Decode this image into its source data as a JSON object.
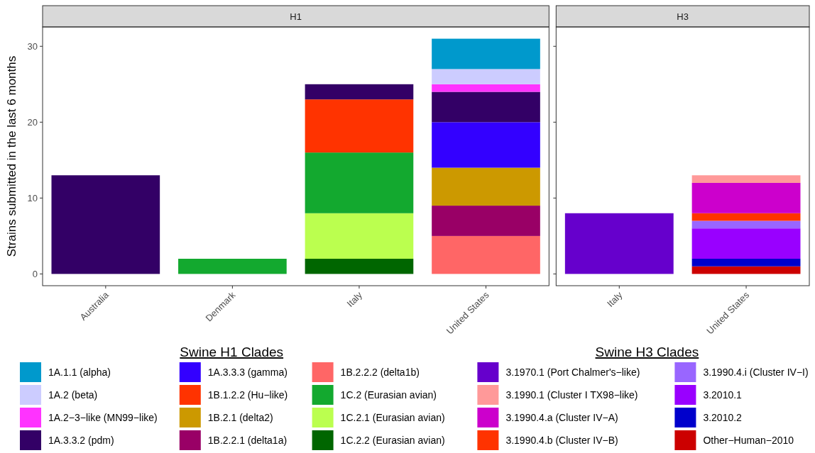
{
  "chart_data": [
    {
      "type": "bar",
      "stacked": true,
      "title": "H1",
      "ylabel": "Strains submitted in the last 6 months",
      "legend": "bottom",
      "legend_title": "Swine H1 Clades",
      "grid": false,
      "ylim": [
        -1.55,
        32.55
      ],
      "yticks": [
        0,
        10,
        20,
        30
      ],
      "categories": [
        "Australia",
        "Denmark",
        "Italy",
        "United States"
      ],
      "series": [
        {
          "name": "1C.2.2 (Eurasian avian)",
          "color": "#006600",
          "values": [
            null,
            null,
            2,
            null
          ]
        },
        {
          "name": "1C.2.1 (Eurasian avian)",
          "color": "#bbff4f",
          "values": [
            null,
            null,
            6,
            null
          ]
        },
        {
          "name": "1C.2 (Eurasian avian)",
          "color": "#13a92f",
          "values": [
            null,
            2,
            8,
            null
          ]
        },
        {
          "name": "1B.2.2.2 (delta1b)",
          "color": "#ff6666",
          "values": [
            null,
            null,
            null,
            5
          ]
        },
        {
          "name": "1B.2.2.1 (delta1a)",
          "color": "#990066",
          "values": [
            null,
            null,
            null,
            4
          ]
        },
        {
          "name": "1B.2.1 (delta2)",
          "color": "#cc9900",
          "values": [
            null,
            null,
            null,
            5
          ]
        },
        {
          "name": "1B.1.2.2 (Hu−like)",
          "color": "#ff3300",
          "values": [
            null,
            null,
            7,
            null
          ]
        },
        {
          "name": "1A.3.3.3 (gamma)",
          "color": "#3300ff",
          "values": [
            null,
            null,
            null,
            6
          ]
        },
        {
          "name": "1A.3.3.2 (pdm)",
          "color": "#330066",
          "values": [
            13,
            null,
            2,
            4
          ]
        },
        {
          "name": "1A.2−3−like (MN99−like)",
          "color": "#ff33ff",
          "values": [
            null,
            null,
            null,
            1
          ]
        },
        {
          "name": "1A.2 (beta)",
          "color": "#ccccff",
          "values": [
            null,
            null,
            null,
            2
          ]
        },
        {
          "name": "1A.1.1 (alpha)",
          "color": "#0099cc",
          "values": [
            null,
            null,
            null,
            4
          ]
        }
      ]
    },
    {
      "type": "bar",
      "stacked": true,
      "title": "H3",
      "legend": "bottom",
      "legend_title": "Swine H3 Clades",
      "grid": false,
      "tick_labels": "x",
      "ylim": [
        -1.55,
        32.55
      ],
      "yticks": [
        0,
        10,
        20,
        30
      ],
      "categories": [
        "Italy",
        "United States"
      ],
      "series": [
        {
          "name": "Other−Human−2010",
          "color": "#cc0000",
          "values": [
            null,
            1
          ]
        },
        {
          "name": "3.2010.2",
          "color": "#0000cc",
          "values": [
            null,
            1
          ]
        },
        {
          "name": "3.2010.1",
          "color": "#9900ff",
          "values": [
            null,
            4
          ]
        },
        {
          "name": "3.1990.4.i (Cluster IV−I)",
          "color": "#9966ff",
          "values": [
            null,
            1
          ]
        },
        {
          "name": "3.1990.4.b (Cluster IV−B)",
          "color": "#ff3300",
          "values": [
            null,
            1
          ]
        },
        {
          "name": "3.1990.4.a (Cluster IV−A)",
          "color": "#cc00cc",
          "values": [
            null,
            4
          ]
        },
        {
          "name": "3.1990.1 (Cluster I TX98−like)",
          "color": "#ff9999",
          "values": [
            null,
            1
          ]
        },
        {
          "name": "3.1970.1 (Port Chalmer's−like)",
          "color": "#6600cc",
          "values": [
            8,
            null
          ]
        }
      ]
    }
  ]
}
